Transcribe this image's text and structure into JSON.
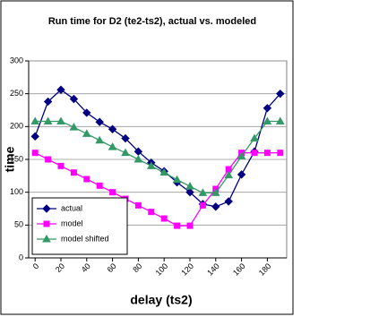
{
  "chart_data": {
    "type": "line",
    "title": "Run time for D2 (te2-ts2), actual vs. modeled",
    "x_label": "delay (ts2)",
    "y_label": "time",
    "x": [
      0,
      10,
      20,
      30,
      40,
      50,
      60,
      70,
      80,
      90,
      100,
      110,
      120,
      130,
      140,
      150,
      160,
      170,
      180,
      190
    ],
    "series": [
      {
        "name": "actual",
        "color": "#000080",
        "marker": "diamond",
        "values": [
          185,
          238,
          256,
          242,
          221,
          207,
          196,
          182,
          162,
          145,
          132,
          115,
          100,
          82,
          78,
          86,
          127,
          162,
          228,
          250
        ]
      },
      {
        "name": "model",
        "color": "#ff00ff",
        "marker": "square",
        "values": [
          160,
          150,
          140,
          130,
          120,
          110,
          100,
          90,
          80,
          70,
          60,
          49,
          49,
          80,
          105,
          135,
          160,
          160,
          160,
          160
        ]
      },
      {
        "name": "model shifted",
        "color": "#339966",
        "marker": "triangle",
        "values": [
          208,
          208,
          208,
          199,
          189,
          179,
          169,
          160,
          150,
          140,
          130,
          119,
          109,
          99,
          99,
          126,
          155,
          182,
          208,
          208
        ]
      }
    ],
    "xlim": [
      -5,
      195
    ],
    "xticks": [
      0,
      20,
      40,
      60,
      80,
      100,
      120,
      140,
      160,
      180
    ],
    "ylim": [
      0,
      300
    ],
    "yticks": [
      0,
      50,
      100,
      150,
      200,
      250,
      300
    ],
    "grid": true,
    "legend": "lower left"
  }
}
